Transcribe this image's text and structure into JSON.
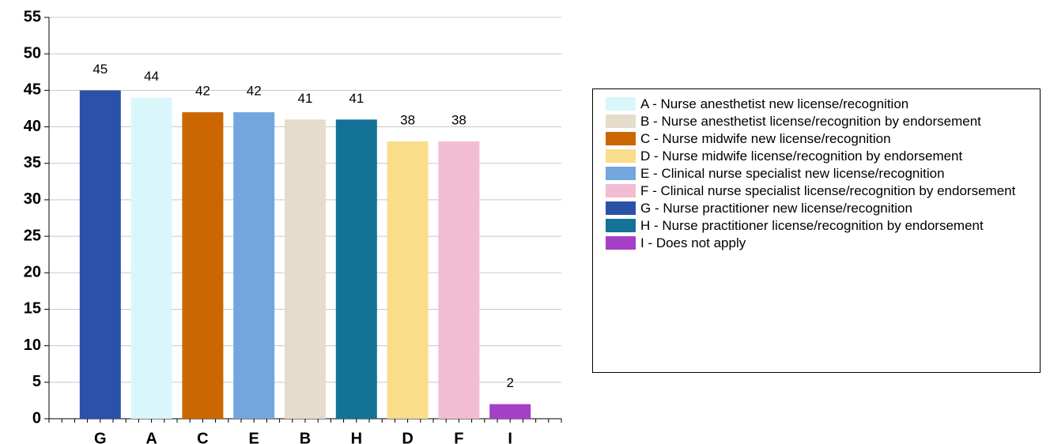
{
  "chart_data": {
    "type": "bar",
    "categories": [
      "G",
      "A",
      "C",
      "E",
      "B",
      "H",
      "D",
      "F",
      "I"
    ],
    "values": [
      45,
      44,
      42,
      42,
      41,
      41,
      38,
      38,
      2
    ],
    "colors": [
      "#2a52a9",
      "#d9f7fb",
      "#cc6600",
      "#73a6dc",
      "#e5dccb",
      "#137296",
      "#f9dd8a",
      "#f2bdd2",
      "#a53fc6"
    ],
    "ylim": [
      0,
      55
    ],
    "yticks": [
      0,
      5,
      10,
      15,
      20,
      25,
      30,
      35,
      40,
      45,
      50,
      55
    ],
    "grid": true,
    "legend": [
      {
        "label": "A - Nurse anesthetist new license/recognition",
        "color": "#d9f7fb"
      },
      {
        "label": "B - Nurse anesthetist license/recognition by endorsement",
        "color": "#e5dccb"
      },
      {
        "label": "C - Nurse midwife new license/recognition",
        "color": "#cc6600"
      },
      {
        "label": "D - Nurse midwife license/recognition by endorsement",
        "color": "#f9dd8a"
      },
      {
        "label": "E - Clinical nurse specialist new license/recognition",
        "color": "#73a6dc"
      },
      {
        "label": "F - Clinical nurse specialist license/recognition by endorsement",
        "color": "#f2bdd2"
      },
      {
        "label": "G - Nurse practitioner new license/recognition",
        "color": "#2a52a9"
      },
      {
        "label": "H - Nurse practitioner license/recognition by endorsement",
        "color": "#137296"
      },
      {
        "label": "I - Does not apply",
        "color": "#a53fc6"
      }
    ]
  }
}
